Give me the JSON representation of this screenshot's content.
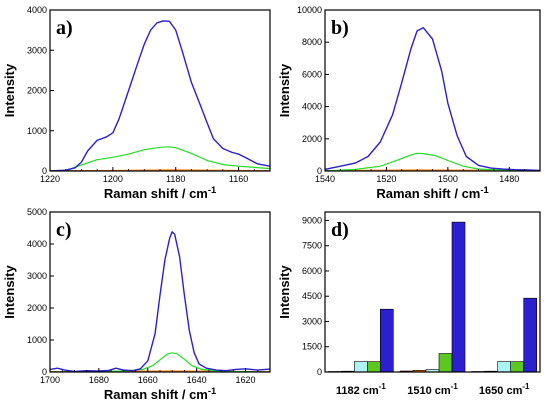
{
  "chart_data": [
    {
      "panel": "a)",
      "type": "line",
      "xlabel": "Raman shift / cm-1",
      "ylabel": "Intensity",
      "xlim": [
        1220,
        1150
      ],
      "ylim": [
        0,
        4000
      ],
      "xticks": [
        1220,
        1200,
        1180,
        1160
      ],
      "yticks": [
        0,
        1000,
        2000,
        3000,
        4000
      ],
      "series": [
        {
          "color": "#2b1fd0",
          "x": [
            1220,
            1215,
            1212,
            1210,
            1208,
            1205,
            1202,
            1200,
            1198,
            1195,
            1192,
            1190,
            1188,
            1186,
            1184,
            1182,
            1180,
            1178,
            1175,
            1172,
            1170,
            1168,
            1165,
            1162,
            1160,
            1157,
            1154,
            1150
          ],
          "y": [
            0,
            20,
            80,
            220,
            500,
            760,
            850,
            950,
            1300,
            2000,
            2700,
            3150,
            3500,
            3680,
            3730,
            3720,
            3500,
            3000,
            2200,
            1600,
            1200,
            800,
            560,
            460,
            420,
            300,
            180,
            120
          ]
        },
        {
          "color": "#22dd22",
          "x": [
            1220,
            1215,
            1210,
            1205,
            1200,
            1195,
            1190,
            1185,
            1182,
            1180,
            1175,
            1170,
            1165,
            1160,
            1155,
            1150
          ],
          "y": [
            0,
            10,
            150,
            280,
            340,
            420,
            530,
            590,
            600,
            580,
            440,
            260,
            160,
            120,
            90,
            60
          ]
        },
        {
          "color": "#ff7f00",
          "x": [
            1220,
            1190,
            1182,
            1170,
            1150
          ],
          "y": [
            0,
            20,
            30,
            20,
            5
          ]
        },
        {
          "color": "#8b0000",
          "x": [
            1220,
            1182,
            1150
          ],
          "y": [
            0,
            10,
            0
          ]
        },
        {
          "color": "#1e90ff",
          "x": [
            1220,
            1182,
            1150
          ],
          "y": [
            0,
            15,
            0
          ]
        }
      ]
    },
    {
      "panel": "b)",
      "type": "line",
      "xlabel": "Raman shift / cm-1",
      "ylabel": "Intensity",
      "xlim": [
        1540,
        1470
      ],
      "ylim": [
        0,
        10000
      ],
      "xticks": [
        1540,
        1520,
        1500,
        1480
      ],
      "yticks": [
        0,
        2000,
        4000,
        6000,
        8000,
        10000
      ],
      "series": [
        {
          "color": "#2b1fd0",
          "x": [
            1540,
            1535,
            1530,
            1526,
            1522,
            1518,
            1515,
            1512,
            1510,
            1508,
            1505,
            1502,
            1500,
            1497,
            1494,
            1490,
            1486,
            1482,
            1478,
            1474,
            1470
          ],
          "y": [
            100,
            300,
            500,
            900,
            1800,
            3500,
            5500,
            7600,
            8700,
            8900,
            8200,
            6200,
            4200,
            2200,
            900,
            350,
            180,
            120,
            80,
            60,
            40
          ]
        },
        {
          "color": "#22dd22",
          "x": [
            1540,
            1530,
            1522,
            1516,
            1512,
            1510,
            1508,
            1504,
            1500,
            1495,
            1490,
            1480,
            1470
          ],
          "y": [
            0,
            100,
            300,
            700,
            1000,
            1100,
            1080,
            950,
            650,
            300,
            120,
            40,
            20
          ]
        },
        {
          "color": "#ff7f00",
          "x": [
            1540,
            1510,
            1470
          ],
          "y": [
            20,
            60,
            20
          ]
        },
        {
          "color": "#8b0000",
          "x": [
            1540,
            1510,
            1470
          ],
          "y": [
            10,
            30,
            10
          ]
        },
        {
          "color": "#1e90ff",
          "x": [
            1540,
            1510,
            1470
          ],
          "y": [
            15,
            40,
            15
          ]
        }
      ]
    },
    {
      "panel": "c)",
      "type": "line",
      "xlabel": "Raman shift / cm-1",
      "ylabel": "Intensity",
      "xlim": [
        1700,
        1610
      ],
      "ylim": [
        0,
        5000
      ],
      "xticks": [
        1700,
        1680,
        1660,
        1640,
        1620
      ],
      "yticks": [
        0,
        1000,
        2000,
        3000,
        4000,
        5000
      ],
      "series": [
        {
          "color": "#2b1fd0",
          "x": [
            1700,
            1697,
            1694,
            1690,
            1685,
            1680,
            1676,
            1673,
            1670,
            1666,
            1663,
            1660,
            1657,
            1655,
            1653,
            1651,
            1650,
            1649,
            1647,
            1645,
            1643,
            1641,
            1639,
            1636,
            1632,
            1628,
            1624,
            1620,
            1615,
            1610
          ],
          "y": [
            80,
            120,
            60,
            20,
            40,
            30,
            50,
            120,
            60,
            40,
            100,
            350,
            1200,
            2400,
            3500,
            4200,
            4380,
            4300,
            3600,
            2400,
            1300,
            600,
            250,
            120,
            60,
            40,
            80,
            100,
            60,
            90
          ]
        },
        {
          "color": "#22dd22",
          "x": [
            1700,
            1680,
            1670,
            1662,
            1658,
            1655,
            1652,
            1650,
            1648,
            1645,
            1642,
            1638,
            1630,
            1620,
            1610
          ],
          "y": [
            0,
            10,
            30,
            80,
            200,
            380,
            560,
            600,
            570,
            400,
            200,
            80,
            20,
            10,
            0
          ]
        },
        {
          "color": "#ff7f00",
          "x": [
            1700,
            1650,
            1610
          ],
          "y": [
            10,
            30,
            10
          ]
        },
        {
          "color": "#8b0000",
          "x": [
            1700,
            1650,
            1610
          ],
          "y": [
            5,
            20,
            5
          ]
        },
        {
          "color": "#1e90ff",
          "x": [
            1700,
            1650,
            1610
          ],
          "y": [
            5,
            25,
            5
          ]
        }
      ]
    },
    {
      "panel": "d)",
      "type": "bar",
      "xlabel": "",
      "ylabel": "Intensity",
      "ylim": [
        0,
        9500
      ],
      "yticks": [
        0,
        1500,
        3000,
        4500,
        6000,
        7500,
        9000
      ],
      "categories": [
        "1182 cm-1",
        "1510 cm-1",
        "1650 cm-1"
      ],
      "series": [
        {
          "color": "#8b0000",
          "values": [
            30,
            60,
            30
          ]
        },
        {
          "color": "#ff7f00",
          "values": [
            50,
            100,
            50
          ]
        },
        {
          "color": "#aef3f3",
          "values": [
            620,
            140,
            620
          ]
        },
        {
          "color": "#5ac81e",
          "values": [
            620,
            1100,
            620
          ]
        },
        {
          "color": "#2b1fd0",
          "values": [
            3730,
            8900,
            4380
          ]
        }
      ]
    }
  ]
}
